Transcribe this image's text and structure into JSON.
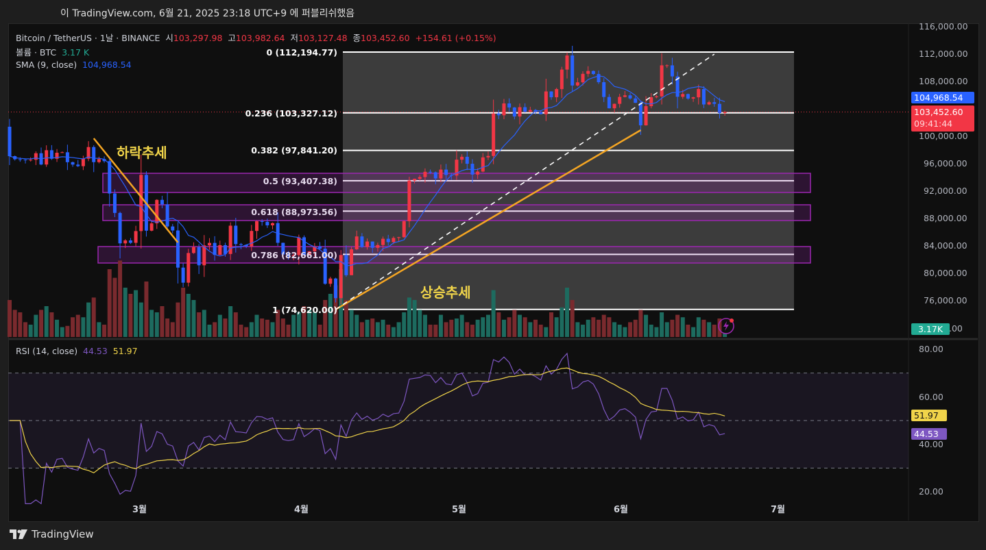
{
  "header": {
    "published": "이 TradingView.com, 6월 21, 2025 23:18 UTC+9 에 퍼블리쉬했음"
  },
  "legend": {
    "symbol": "Bitcoin / TetherUS · 1날 · BINANCE",
    "open_label": "시",
    "open": "103,297.98",
    "high_label": "고",
    "high": "103,982.64",
    "low_label": "저",
    "low": "103,127.48",
    "close_label": "종",
    "close": "103,452.60",
    "change": "+154.61 (+0.15%)",
    "volume_label": "볼륨 · BTC",
    "volume": "3.17 K",
    "sma_label": "SMA (9, close)",
    "sma": "104,968.54",
    "rsi_label": "RSI (14, close)",
    "rsi": "44.53",
    "rsi_ma": "51.97"
  },
  "colors": {
    "up": "#f23645",
    "down": "#2962ff",
    "vol_up": "#1d6b5f",
    "vol_down": "#7a2a2e",
    "sma": "#2962ff",
    "rsi": "#7e57c2",
    "rsi_ma": "#f0d44a",
    "fib_zone": "#9c27b0",
    "trend": "#f5a623"
  },
  "fib": {
    "levels": [
      {
        "ratio": 0,
        "price": 112194.77,
        "label": "0 (112,194.77)"
      },
      {
        "ratio": 0.236,
        "price": 103327.12,
        "label": "0.236 (103,327.12)"
      },
      {
        "ratio": 0.382,
        "price": 97841.2,
        "label": "0.382 (97,841.20)"
      },
      {
        "ratio": 0.5,
        "price": 93407.38,
        "label": "0.5 (93,407.38)"
      },
      {
        "ratio": 0.618,
        "price": 88973.56,
        "label": "0.618 (88,973.56)"
      },
      {
        "ratio": 0.786,
        "price": 82661.0,
        "label": "0.786 (82,661.00)"
      },
      {
        "ratio": 1,
        "price": 74620.0,
        "label": "1 (74,620.00)"
      }
    ]
  },
  "annotations": {
    "downtrend": "하락추세",
    "uptrend": "상승추세"
  },
  "price_axis": {
    "ticks": [
      "116,000.00",
      "112,000.00",
      "108,000.00",
      "100,000.00",
      "96,000.00",
      "92,000.00",
      "88,000.00",
      "84,000.00",
      "80,000.00",
      "76,000.00",
      ".00"
    ],
    "sma_badge": "104,968.54",
    "price_badge": "103,452.60",
    "countdown": "09:41:44",
    "volume_badge": "3.17K"
  },
  "rsi_axis": {
    "ticks": [
      "80.00",
      "60.00",
      "40.00",
      "20.00"
    ],
    "rsi_ma_badge": "51.97",
    "rsi_badge": "44.53"
  },
  "time_axis": {
    "labels": [
      "3월",
      "4월",
      "5월",
      "6월",
      "7월"
    ]
  },
  "footer": {
    "brand": "TradingView"
  },
  "chart_data": {
    "type": "candlestick",
    "title": "Bitcoin / TetherUS · 1D · BINANCE",
    "x_range": [
      "2025-02-05",
      "2025-06-21"
    ],
    "ylim": [
      72000,
      116000
    ],
    "first_open": 101300,
    "close": [
      97000,
      96550,
      96500,
      96470,
      96470,
      97430,
      95780,
      97870,
      96620,
      97500,
      97570,
      96120,
      95770,
      95540,
      96630,
      98330,
      96130,
      96580,
      96270,
      91550,
      88710,
      84270,
      84700,
      84350,
      86060,
      94270,
      86120,
      87190,
      90620,
      89960,
      86740,
      86150,
      80730,
      78530,
      82860,
      83720,
      81070,
      83970,
      84340,
      82580,
      84010,
      82720,
      86850,
      84160,
      84040,
      83830,
      86080,
      87500,
      87410,
      86900,
      87230,
      84350,
      82650,
      82390,
      82550,
      85160,
      82520,
      83100,
      83840,
      83500,
      78370,
      79140,
      76270,
      82570,
      79620,
      83400,
      85280,
      83740,
      84540,
      83620,
      84030,
      84940,
      84450,
      85060,
      85170,
      87510,
      93440,
      93700,
      93950,
      94720,
      94650,
      93750,
      95040,
      94260,
      94170,
      96490,
      96910,
      95890,
      94320,
      94750,
      96820,
      97030,
      103240,
      102970,
      104700,
      104110,
      102790,
      104150,
      103500,
      103740,
      103470,
      103120,
      106450,
      105600,
      106790,
      109640,
      111700,
      107320,
      107780,
      109020,
      109440,
      108990,
      107800,
      105640,
      103990,
      104640,
      105650,
      105880,
      105430,
      104790,
      101500,
      104300,
      105600,
      105730,
      110260,
      110260,
      108650,
      105670,
      106070,
      105410,
      105590,
      106800,
      104550,
      104880,
      104640,
      103300,
      103452.6
    ],
    "volume_k": [
      30,
      22,
      20,
      12,
      10,
      18,
      22,
      25,
      20,
      14,
      8,
      9,
      16,
      18,
      16,
      28,
      32,
      12,
      10,
      55,
      48,
      62,
      40,
      35,
      38,
      28,
      45,
      22,
      20,
      25,
      15,
      12,
      28,
      40,
      35,
      30,
      20,
      22,
      10,
      12,
      18,
      15,
      25,
      20,
      10,
      8,
      12,
      18,
      15,
      14,
      12,
      22,
      15,
      10,
      18,
      20,
      25,
      22,
      20,
      10,
      30,
      35,
      42,
      55,
      30,
      22,
      18,
      12,
      14,
      15,
      12,
      14,
      10,
      8,
      12,
      20,
      32,
      30,
      22,
      18,
      10,
      10,
      18,
      12,
      14,
      15,
      18,
      12,
      10,
      14,
      16,
      18,
      38,
      20,
      14,
      16,
      22,
      18,
      16,
      12,
      14,
      10,
      8,
      20,
      16,
      24,
      40,
      30,
      12,
      10,
      14,
      16,
      14,
      18,
      16,
      12,
      10,
      8,
      12,
      14,
      22,
      18,
      10,
      8,
      20,
      12,
      14,
      18,
      16,
      10,
      8,
      16,
      14,
      12,
      10,
      15,
      3.17
    ],
    "sma_period": 9,
    "rsi_period": 14,
    "rsi_levels": [
      70,
      50,
      30
    ],
    "rsi_ylim": [
      15,
      85
    ],
    "trendlines": [
      {
        "name": "downtrend",
        "from": {
          "date": "2025-02-21",
          "price": 99600
        },
        "to": {
          "date": "2025-03-09",
          "price": 84400
        }
      },
      {
        "name": "uptrend",
        "from": {
          "date": "2025-04-08",
          "price": 74620
        },
        "to": {
          "date": "2025-06-05",
          "price": 100800
        }
      },
      {
        "name": "dashed-trend",
        "from": {
          "date": "2025-04-08",
          "price": 74620
        },
        "to": {
          "date": "2025-06-19",
          "price": 111900
        }
      }
    ]
  }
}
